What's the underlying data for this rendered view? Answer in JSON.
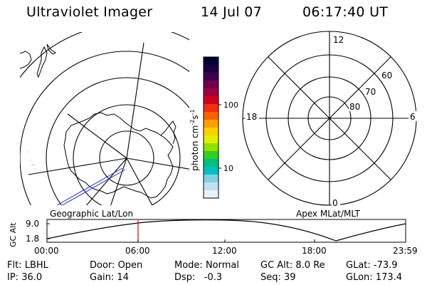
{
  "header": {
    "title": "Ultraviolet Imager",
    "date": "14 Jul 07",
    "time": "06:17:40 UT"
  },
  "colorbar": {
    "unit_label": "photon cm-2s-1",
    "unit_base": "photon cm",
    "unit_sup1": "-2",
    "unit_mid": "s",
    "unit_sup2": "-1",
    "ticks": [
      "100",
      "10"
    ],
    "colors": [
      "#000030",
      "#1a0040",
      "#400050",
      "#700050",
      "#a00040",
      "#d00020",
      "#f03010",
      "#ff6000",
      "#ffa000",
      "#ffd000",
      "#e0f000",
      "#90e000",
      "#30d020",
      "#00c080",
      "#00c0c0",
      "#80d0e0",
      "#c0e0f0",
      "#e8f0f8"
    ]
  },
  "polar_plot": {
    "mlt_labels": {
      "top": "12",
      "left": "18",
      "right": "6",
      "bottom": "0"
    },
    "lat_labels": [
      "60",
      "70",
      "80"
    ]
  },
  "map_labels": {
    "left": "Geographic Lat/Lon",
    "right": "Apex MLat/MLT"
  },
  "altitude_plot": {
    "axis_label": "GC Alt",
    "y_ticks": [
      "9.0",
      "1.8"
    ],
    "x_ticks": [
      "00:00",
      "06:00",
      "12:00",
      "18:00",
      "23:59"
    ],
    "marker_time": "06:17:40"
  },
  "info": {
    "flt_label": "Flt:",
    "flt_value": "LBHL",
    "ip_label": "IP:",
    "ip_value": "36.0",
    "door_label": "Door:",
    "door_value": "Open",
    "gain_label": "Gain:",
    "gain_value": "14",
    "mode_label": "Mode:",
    "mode_value": "Normal",
    "dsp_label": "Dsp:",
    "dsp_value": "-0.3",
    "gcalt_label": "GC Alt:",
    "gcalt_value": "8.0 Re",
    "seq_label": "Seq:",
    "seq_value": "39",
    "glat_label": "GLat:",
    "glat_value": "-73.9",
    "glon_label": "GLon:",
    "glon_value": "173.4"
  }
}
